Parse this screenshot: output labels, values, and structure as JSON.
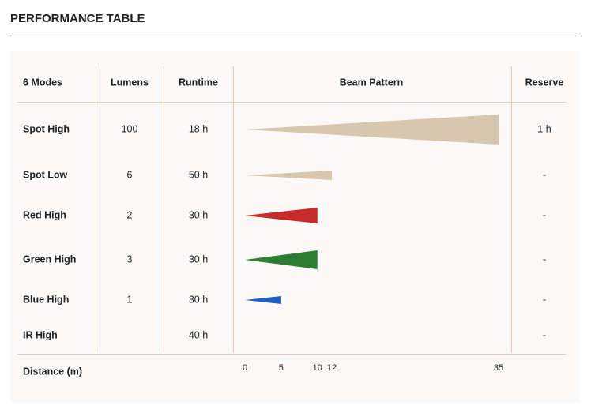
{
  "header": {
    "title": "PERFORMANCE TABLE"
  },
  "table": {
    "columns": [
      "6 Modes",
      "Lumens",
      "Runtime",
      "Beam Pattern",
      "Reserve"
    ],
    "rows": [
      {
        "mode": "Spot High",
        "lumens": 100,
        "runtime": "18 h",
        "beam": 35,
        "color": "#d8c7ae",
        "reserve": "1 h"
      },
      {
        "mode": "Spot Low",
        "lumens": 6,
        "runtime": "50 h",
        "beam": 12,
        "color": "#d8c7ae",
        "reserve": "-"
      },
      {
        "mode": "Red High",
        "lumens": 2,
        "runtime": "30 h",
        "beam": 10,
        "color": "#c62a2a",
        "reserve": "-"
      },
      {
        "mode": "Green High",
        "lumens": 3,
        "runtime": "30 h",
        "beam": 10,
        "color": "#2e7d32",
        "reserve": "-"
      },
      {
        "mode": "Blue High",
        "lumens": 1,
        "runtime": "30 h",
        "beam": 5,
        "color": "#1f5fbf",
        "reserve": "-"
      },
      {
        "mode": "IR High",
        "runtime": "40 h",
        "beam": null,
        "reserve": "-"
      }
    ]
  },
  "distance_axis": {
    "label": "Distance (m)",
    "xlim": [
      0,
      35
    ],
    "ticks": [
      0,
      5,
      10,
      12,
      35
    ]
  }
}
